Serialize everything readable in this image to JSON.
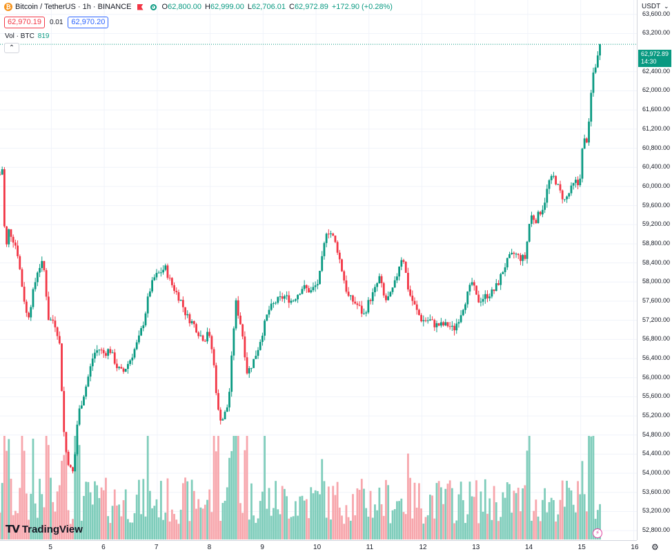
{
  "header": {
    "symbol": "Bitcoin / TetherUS · 1h · BINANCE",
    "coin_icon": "bitcoin-icon",
    "ohlc": {
      "o_label": "O",
      "o": "62,800.00",
      "h_label": "H",
      "h": "62,999.00",
      "l_label": "L",
      "l": "62,706.01",
      "c_label": "C",
      "c": "62,972.89",
      "change": "+172.90 (+0.28%)"
    },
    "sell_price": "62,970.19",
    "spread": "0.01",
    "buy_price": "62,970.20",
    "volume_label": "Vol · BTC",
    "volume_value": "819",
    "collapse_icon": "chevron-up-icon"
  },
  "price_scale": {
    "currency": "USDT",
    "last_price": "62,972.89",
    "countdown": "14:30",
    "labels": [
      "63,600.00",
      "63,200.00",
      "62,400.00",
      "62,000.00",
      "61,600.00",
      "61,200.00",
      "60,800.00",
      "60,400.00",
      "60,000.00",
      "59,600.00",
      "59,200.00",
      "58,800.00",
      "58,400.00",
      "58,000.00",
      "57,600.00",
      "57,200.00",
      "56,800.00",
      "56,400.00",
      "56,000.00",
      "55,600.00",
      "55,200.00",
      "54,800.00",
      "54,400.00",
      "54,000.00",
      "53,600.00",
      "53,200.00",
      "52,800.00"
    ]
  },
  "time_axis": {
    "labels": [
      "5",
      "6",
      "7",
      "8",
      "9",
      "10",
      "11",
      "12",
      "13",
      "14",
      "15",
      "16"
    ]
  },
  "branding": {
    "logo_text": "TradingView"
  },
  "colors": {
    "up": "#089981",
    "down": "#f23645",
    "up_vol": "#7fcdbb",
    "down_vol": "#f7a6ac",
    "grid": "#f0f3fa"
  },
  "chart_data": {
    "type": "candlestick",
    "x_unit": "day of month (1h candles)",
    "ylim": [
      52600,
      63900
    ],
    "xlim": [
      4.03,
      16.06
    ],
    "anchor_points": [
      [
        4.03,
        60250
      ],
      [
        4.1,
        60450
      ],
      [
        4.12,
        58500
      ],
      [
        4.2,
        59100
      ],
      [
        4.35,
        58700
      ],
      [
        4.45,
        57900
      ],
      [
        4.55,
        57200
      ],
      [
        4.75,
        58300
      ],
      [
        4.85,
        58400
      ],
      [
        4.95,
        57200
      ],
      [
        5.05,
        57200
      ],
      [
        5.15,
        56800
      ],
      [
        5.25,
        54600
      ],
      [
        5.35,
        54100
      ],
      [
        5.42,
        54000
      ],
      [
        5.5,
        55200
      ],
      [
        5.65,
        55800
      ],
      [
        5.8,
        56500
      ],
      [
        5.9,
        56600
      ],
      [
        6.0,
        56500
      ],
      [
        6.1,
        56600
      ],
      [
        6.25,
        56200
      ],
      [
        6.35,
        56100
      ],
      [
        6.5,
        56400
      ],
      [
        6.65,
        56800
      ],
      [
        6.75,
        57200
      ],
      [
        6.85,
        57800
      ],
      [
        6.95,
        58100
      ],
      [
        7.05,
        58200
      ],
      [
        7.15,
        58300
      ],
      [
        7.25,
        58000
      ],
      [
        7.45,
        57600
      ],
      [
        7.55,
        57300
      ],
      [
        7.7,
        57100
      ],
      [
        7.8,
        56900
      ],
      [
        7.9,
        56800
      ],
      [
        7.95,
        57000
      ],
      [
        8.05,
        56500
      ],
      [
        8.15,
        55300
      ],
      [
        8.22,
        55100
      ],
      [
        8.3,
        55300
      ],
      [
        8.35,
        55500
      ],
      [
        8.48,
        57600
      ],
      [
        8.6,
        57000
      ],
      [
        8.7,
        56100
      ],
      [
        8.8,
        56300
      ],
      [
        8.9,
        56600
      ],
      [
        9.0,
        57000
      ],
      [
        9.1,
        57400
      ],
      [
        9.25,
        57600
      ],
      [
        9.4,
        57700
      ],
      [
        9.55,
        57600
      ],
      [
        9.75,
        57900
      ],
      [
        9.9,
        57800
      ],
      [
        10.05,
        58000
      ],
      [
        10.2,
        59100
      ],
      [
        10.3,
        59000
      ],
      [
        10.4,
        58700
      ],
      [
        10.5,
        58200
      ],
      [
        10.6,
        57700
      ],
      [
        10.7,
        57600
      ],
      [
        10.8,
        57500
      ],
      [
        10.9,
        57300
      ],
      [
        11.0,
        57600
      ],
      [
        11.1,
        57800
      ],
      [
        11.2,
        58100
      ],
      [
        11.3,
        57600
      ],
      [
        11.4,
        57700
      ],
      [
        11.5,
        58000
      ],
      [
        11.6,
        58500
      ],
      [
        11.65,
        58500
      ],
      [
        11.75,
        57800
      ],
      [
        11.9,
        57400
      ],
      [
        12.0,
        57200
      ],
      [
        12.15,
        57200
      ],
      [
        12.25,
        57100
      ],
      [
        12.35,
        57100
      ],
      [
        12.5,
        57100
      ],
      [
        12.6,
        57000
      ],
      [
        12.72,
        57300
      ],
      [
        12.85,
        57700
      ],
      [
        12.95,
        58000
      ],
      [
        13.05,
        57600
      ],
      [
        13.2,
        57700
      ],
      [
        13.35,
        57800
      ],
      [
        13.45,
        58000
      ],
      [
        13.55,
        58300
      ],
      [
        13.65,
        58500
      ],
      [
        13.75,
        58600
      ],
      [
        13.85,
        58500
      ],
      [
        13.95,
        58500
      ],
      [
        14.05,
        59400
      ],
      [
        14.15,
        59300
      ],
      [
        14.3,
        59600
      ],
      [
        14.4,
        60100
      ],
      [
        14.5,
        60200
      ],
      [
        14.6,
        59900
      ],
      [
        14.7,
        59700
      ],
      [
        14.8,
        59900
      ],
      [
        14.9,
        60100
      ],
      [
        14.97,
        60000
      ],
      [
        15.05,
        61000
      ],
      [
        15.1,
        60900
      ],
      [
        15.15,
        61200
      ],
      [
        15.22,
        62300
      ],
      [
        15.32,
        62700
      ],
      [
        15.38,
        62980
      ]
    ]
  }
}
